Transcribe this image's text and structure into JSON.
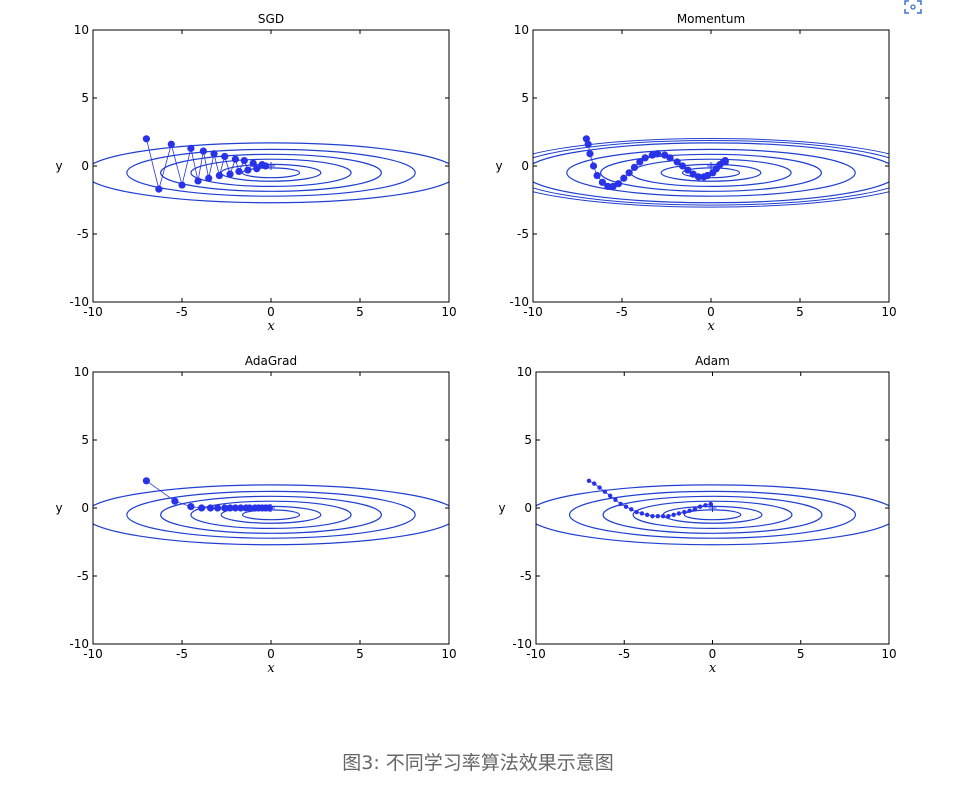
{
  "caption": "图3: 不同学习率算法效果示意图",
  "colors": {
    "contour": "#1f3fd0",
    "path": "#2832e8",
    "axis": "#000000",
    "caption": "#666666"
  },
  "corner_icon": "scan-icon",
  "chart_data": [
    {
      "type": "scatter",
      "title": "SGD",
      "xlabel": "x",
      "ylabel": "y",
      "xlim": [
        -10,
        10
      ],
      "ylim": [
        -10,
        10
      ],
      "xticks": [
        "-10",
        "-5",
        "0",
        "5",
        "10"
      ],
      "yticks": [
        "10",
        "5",
        "0",
        "-5",
        "-10"
      ],
      "grid": false,
      "contours": true,
      "minimum_marker": [
        0,
        0
      ],
      "series": [
        {
          "x": [
            -7.0,
            -6.3,
            -5.6,
            -5.0,
            -4.5,
            -4.1,
            -3.8,
            -3.5,
            -3.2,
            -2.9,
            -2.6,
            -2.3,
            -2.0,
            -1.8,
            -1.5,
            -1.3,
            -1.0,
            -0.8,
            -0.5,
            -0.3
          ],
          "y": [
            2.0,
            -1.7,
            1.6,
            -1.4,
            1.3,
            -1.1,
            1.1,
            -0.9,
            0.9,
            -0.7,
            0.7,
            -0.6,
            0.5,
            -0.4,
            0.4,
            -0.3,
            0.2,
            -0.2,
            0.1,
            0.0
          ]
        }
      ]
    },
    {
      "type": "scatter",
      "title": "Momentum",
      "xlabel": "x",
      "ylabel": "y",
      "xlim": [
        -10,
        10
      ],
      "ylim": [
        -10,
        10
      ],
      "xticks": [
        "-10",
        "-5",
        "0",
        "5",
        "10"
      ],
      "yticks": [
        "10",
        "5",
        "0",
        "-5",
        "-10"
      ],
      "grid": false,
      "contours": true,
      "minimum_marker": [
        0,
        0
      ],
      "series": [
        {
          "x": [
            -7.0,
            -6.9,
            -6.8,
            -6.6,
            -6.4,
            -6.1,
            -5.8,
            -5.5,
            -5.2,
            -4.9,
            -4.6,
            -4.3,
            -4.0,
            -3.7,
            -3.3,
            -3.0,
            -2.6,
            -2.3,
            -1.9,
            -1.6,
            -1.3,
            -1.0,
            -0.7,
            -0.4,
            -0.2,
            0.1,
            0.3,
            0.5,
            0.7,
            0.8,
            0.8
          ],
          "y": [
            2.0,
            1.6,
            0.9,
            0.0,
            -0.7,
            -1.2,
            -1.5,
            -1.5,
            -1.3,
            -0.9,
            -0.5,
            -0.1,
            0.3,
            0.6,
            0.8,
            0.9,
            0.8,
            0.6,
            0.3,
            0.0,
            -0.3,
            -0.6,
            -0.8,
            -0.8,
            -0.7,
            -0.5,
            -0.2,
            0.1,
            0.3,
            0.4,
            0.3
          ]
        }
      ]
    },
    {
      "type": "scatter",
      "title": "AdaGrad",
      "xlabel": "x",
      "ylabel": "y",
      "xlim": [
        -10,
        10
      ],
      "ylim": [
        -10,
        10
      ],
      "xticks": [
        "-10",
        "-5",
        "0",
        "5",
        "10"
      ],
      "yticks": [
        "10",
        "5",
        "0",
        "-5",
        "-10"
      ],
      "grid": false,
      "contours": true,
      "minimum_marker": [
        0,
        0
      ],
      "series": [
        {
          "x": [
            -7.0,
            -5.4,
            -4.5,
            -3.9,
            -3.4,
            -3.0,
            -2.6,
            -2.3,
            -2.0,
            -1.7,
            -1.4,
            -1.2,
            -0.9,
            -0.7,
            -0.5,
            -0.3,
            -0.1
          ],
          "y": [
            2.0,
            0.5,
            0.1,
            0.0,
            0.0,
            0.0,
            0.0,
            0.0,
            0.0,
            0.0,
            0.0,
            0.0,
            0.0,
            0.0,
            0.0,
            0.0,
            0.0
          ]
        }
      ]
    },
    {
      "type": "scatter",
      "title": "Adam",
      "xlabel": "x",
      "ylabel": "y",
      "xlim": [
        -10,
        10
      ],
      "ylim": [
        -10,
        10
      ],
      "xticks": [
        "-10",
        "-5",
        "0",
        "5",
        "10"
      ],
      "yticks": [
        "10",
        "5",
        "0",
        "-5",
        "-10"
      ],
      "grid": false,
      "contours": true,
      "minimum_marker": [
        0,
        0
      ],
      "series": [
        {
          "x": [
            -7.0,
            -6.7,
            -6.4,
            -6.1,
            -5.8,
            -5.5,
            -5.2,
            -4.9,
            -4.6,
            -4.3,
            -4.0,
            -3.7,
            -3.4,
            -3.1,
            -2.8,
            -2.5,
            -2.2,
            -1.9,
            -1.6,
            -1.3,
            -1.0,
            -0.7,
            -0.4,
            -0.1
          ],
          "y": [
            2.0,
            1.8,
            1.5,
            1.2,
            0.9,
            0.6,
            0.3,
            0.1,
            -0.1,
            -0.3,
            -0.4,
            -0.5,
            -0.6,
            -0.6,
            -0.6,
            -0.6,
            -0.5,
            -0.4,
            -0.3,
            -0.2,
            -0.1,
            0.1,
            0.2,
            0.3
          ]
        }
      ]
    }
  ]
}
